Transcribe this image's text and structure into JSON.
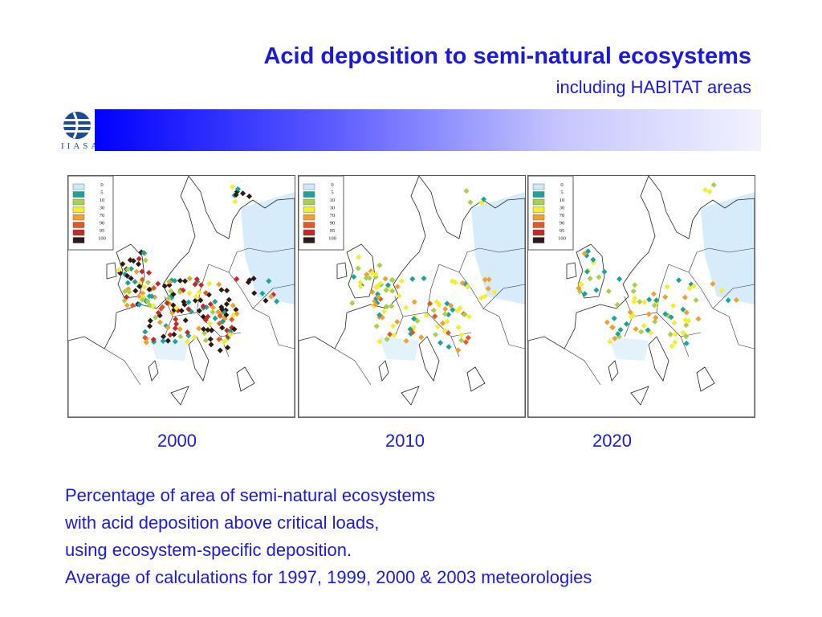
{
  "header": {
    "title": "Acid deposition to semi-natural ecosystems",
    "subtitle": "including HABITAT areas"
  },
  "logo": {
    "text": "IIASA",
    "icon": "iiasa-globe-logo"
  },
  "legend": {
    "labels": [
      "0",
      "5",
      "10",
      "30",
      "70",
      "90",
      "95",
      "100"
    ],
    "colors": [
      "#cfe9f9",
      "#1aa39a",
      "#a6d24a",
      "#f4ee30",
      "#f0a030",
      "#e05a28",
      "#c8282a",
      "#2b1a16"
    ]
  },
  "maps": [
    {
      "year": "2000",
      "intensity": 1.0
    },
    {
      "year": "2010",
      "intensity": 0.55
    },
    {
      "year": "2020",
      "intensity": 0.42
    }
  ],
  "caption": {
    "lines": [
      "Percentage of area of semi-natural ecosystems",
      "with acid deposition above critical loads,",
      "using ecosystem-specific deposition.",
      "Average of calculations for 1997, 1999, 2000 & 2003 meteorologies"
    ]
  }
}
